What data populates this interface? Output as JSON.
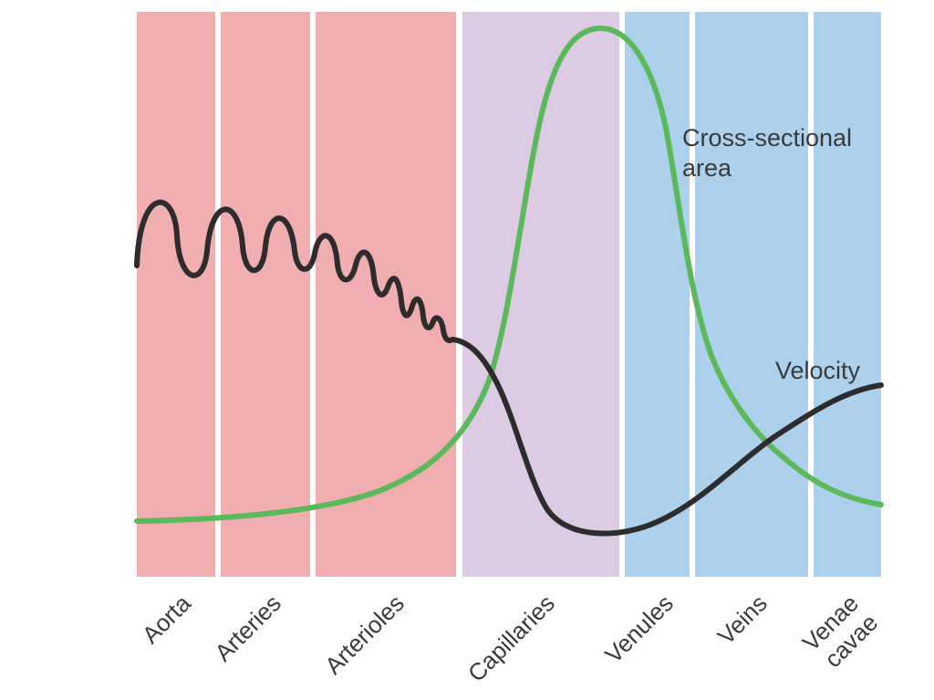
{
  "colors": {
    "arterial": "#f0aeb0",
    "capillary": "#dccbe3",
    "venous": "#add0ec",
    "area_curve": "#5bb85b",
    "velocity_curve": "#2e2b2d",
    "label_text": "#3a3a3a"
  },
  "vessel_segments": [
    {
      "label": "Aorta",
      "zone": "arterial"
    },
    {
      "label": "Arteries",
      "zone": "arterial"
    },
    {
      "label": "Arterioles",
      "zone": "arterial"
    },
    {
      "label": "Capillaries",
      "zone": "capillary"
    },
    {
      "label": "Venules",
      "zone": "venous"
    },
    {
      "label": "Veins",
      "zone": "venous"
    },
    {
      "label": "Venae\ncavae",
      "zone": "venous"
    }
  ],
  "curves": {
    "cross_sectional_area": {
      "label": "Cross-sectional\narea",
      "color": "area_curve"
    },
    "velocity": {
      "label": "Velocity",
      "color": "velocity_curve"
    }
  }
}
